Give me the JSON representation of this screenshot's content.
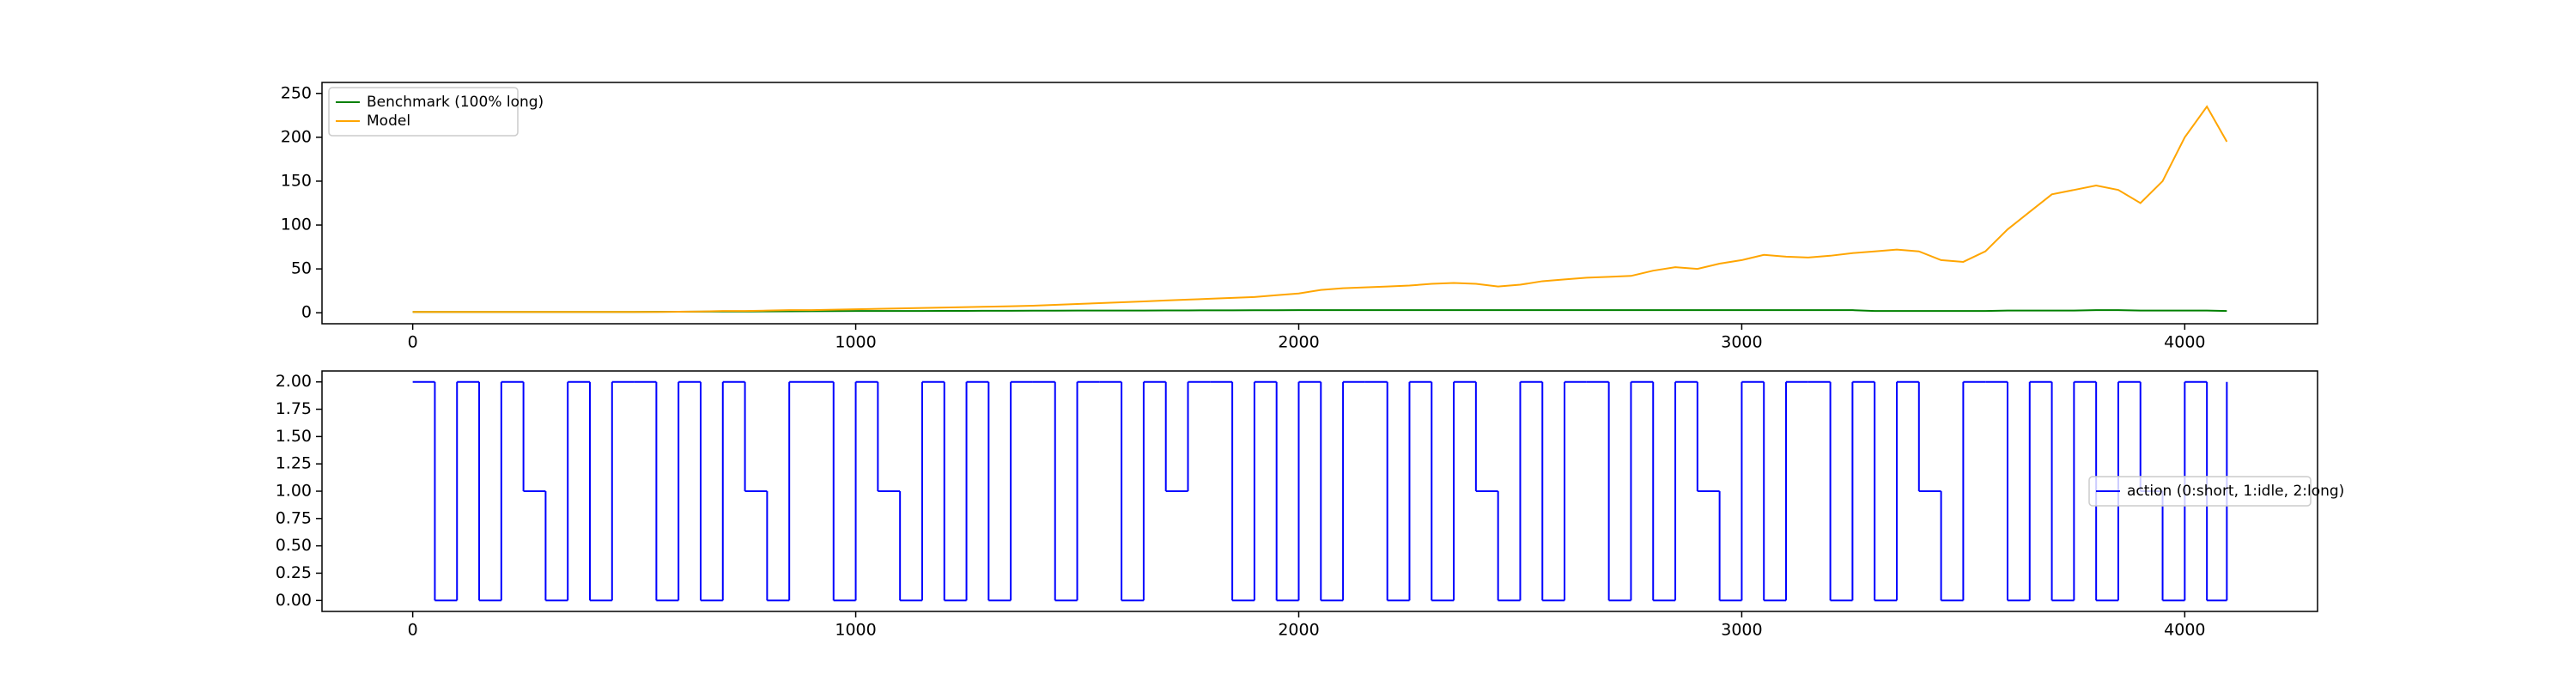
{
  "chart_data": [
    {
      "type": "line",
      "x": [
        0,
        50,
        100,
        150,
        200,
        250,
        300,
        350,
        400,
        450,
        500,
        550,
        600,
        650,
        700,
        750,
        800,
        850,
        900,
        950,
        1000,
        1050,
        1100,
        1150,
        1200,
        1250,
        1300,
        1350,
        1400,
        1450,
        1500,
        1550,
        1600,
        1650,
        1700,
        1750,
        1800,
        1850,
        1900,
        1950,
        2000,
        2050,
        2100,
        2150,
        2200,
        2250,
        2300,
        2350,
        2400,
        2450,
        2500,
        2550,
        2600,
        2650,
        2700,
        2750,
        2800,
        2850,
        2900,
        2950,
        3000,
        3050,
        3100,
        3150,
        3200,
        3250,
        3300,
        3350,
        3400,
        3450,
        3500,
        3550,
        3600,
        3650,
        3700,
        3750,
        3800,
        3850,
        3900,
        3950,
        4000,
        4050,
        4095
      ],
      "series": [
        {
          "name": "Benchmark (100% long)",
          "color": "#008000",
          "values": [
            1,
            1,
            1,
            1,
            1,
            1,
            1,
            1,
            1,
            1,
            1,
            1.1,
            1.2,
            1.3,
            1.4,
            1.5,
            1.6,
            1.7,
            1.8,
            1.9,
            2,
            2,
            2.1,
            2.1,
            2.2,
            2.2,
            2.3,
            2.3,
            2.4,
            2.4,
            2.5,
            2.5,
            2.6,
            2.6,
            2.7,
            2.7,
            2.8,
            2.8,
            2.9,
            2.9,
            3,
            3,
            3,
            3,
            3,
            3,
            3,
            3,
            3,
            3,
            3,
            3,
            3,
            3,
            3,
            3,
            3,
            3,
            3,
            3,
            3,
            3,
            3,
            3,
            3,
            3,
            2,
            2,
            2,
            2,
            2,
            2,
            2.5,
            2.5,
            2.5,
            2.5,
            3,
            3,
            2.5,
            2.5,
            2.5,
            2.5,
            2
          ]
        },
        {
          "name": "Model",
          "color": "#ffa500",
          "values": [
            1,
            1,
            1,
            1,
            1,
            1,
            1,
            1,
            1,
            1,
            1,
            1,
            1.2,
            1.5,
            2,
            2,
            2.5,
            3,
            3,
            3.5,
            4,
            4.5,
            5,
            5.5,
            6,
            6.5,
            7,
            7.5,
            8,
            9,
            10,
            11,
            12,
            13,
            14,
            15,
            16,
            17,
            18,
            20,
            22,
            26,
            28,
            29,
            30,
            31,
            33,
            34,
            33,
            30,
            32,
            36,
            38,
            40,
            41,
            42,
            48,
            52,
            50,
            56,
            60,
            66,
            64,
            63,
            65,
            68,
            70,
            72,
            70,
            60,
            58,
            70,
            95,
            115,
            135,
            140,
            145,
            140,
            125,
            150,
            200,
            235,
            195
          ]
        }
      ],
      "xlim": [
        -204.75,
        4299.75
      ],
      "xticks": [
        0,
        1000,
        2000,
        3000,
        4000
      ],
      "ylim": [
        -12.5,
        262.5
      ],
      "yticks": [
        0,
        50,
        100,
        150,
        200,
        250
      ],
      "legend": "upper left"
    },
    {
      "type": "step",
      "x": [
        0,
        50,
        100,
        150,
        200,
        250,
        300,
        350,
        400,
        450,
        500,
        550,
        600,
        650,
        700,
        750,
        800,
        850,
        900,
        950,
        1000,
        1050,
        1100,
        1150,
        1200,
        1250,
        1300,
        1350,
        1400,
        1450,
        1500,
        1550,
        1600,
        1650,
        1700,
        1750,
        1800,
        1850,
        1900,
        1950,
        2000,
        2050,
        2100,
        2150,
        2200,
        2250,
        2300,
        2350,
        2400,
        2450,
        2500,
        2550,
        2600,
        2650,
        2700,
        2750,
        2800,
        2850,
        2900,
        2950,
        3000,
        3050,
        3100,
        3150,
        3200,
        3250,
        3300,
        3350,
        3400,
        3450,
        3500,
        3550,
        3600,
        3650,
        3700,
        3750,
        3800,
        3850,
        3900,
        3950,
        4000,
        4050,
        4095
      ],
      "series": [
        {
          "name": "action (0:short, 1:idle, 2:long)",
          "color": "#0000ff",
          "values": [
            2,
            0,
            2,
            0,
            2,
            1,
            0,
            2,
            0,
            2,
            2,
            0,
            2,
            0,
            2,
            1,
            0,
            2,
            2,
            0,
            2,
            1,
            0,
            2,
            0,
            2,
            0,
            2,
            2,
            0,
            2,
            2,
            0,
            2,
            1,
            2,
            2,
            0,
            2,
            0,
            2,
            0,
            2,
            2,
            0,
            2,
            0,
            2,
            1,
            0,
            2,
            0,
            2,
            2,
            0,
            2,
            0,
            2,
            1,
            0,
            2,
            0,
            2,
            2,
            0,
            2,
            0,
            2,
            1,
            0,
            2,
            2,
            0,
            2,
            0,
            2,
            0,
            2,
            1,
            0,
            2,
            0,
            2
          ]
        }
      ],
      "xlim": [
        -204.75,
        4299.75
      ],
      "xticks": [
        0,
        1000,
        2000,
        3000,
        4000
      ],
      "ylim": [
        -0.1,
        2.1
      ],
      "yticks": [
        {
          "value": 0,
          "label": "0.00"
        },
        {
          "value": 0.25,
          "label": "0.25"
        },
        {
          "value": 0.5,
          "label": "0.50"
        },
        {
          "value": 0.75,
          "label": "0.75"
        },
        {
          "value": 1,
          "label": "1.00"
        },
        {
          "value": 1.25,
          "label": "1.25"
        },
        {
          "value": 1.5,
          "label": "1.50"
        },
        {
          "value": 1.75,
          "label": "1.75"
        },
        {
          "value": 2,
          "label": "2.00"
        }
      ],
      "legend": "center right"
    }
  ]
}
